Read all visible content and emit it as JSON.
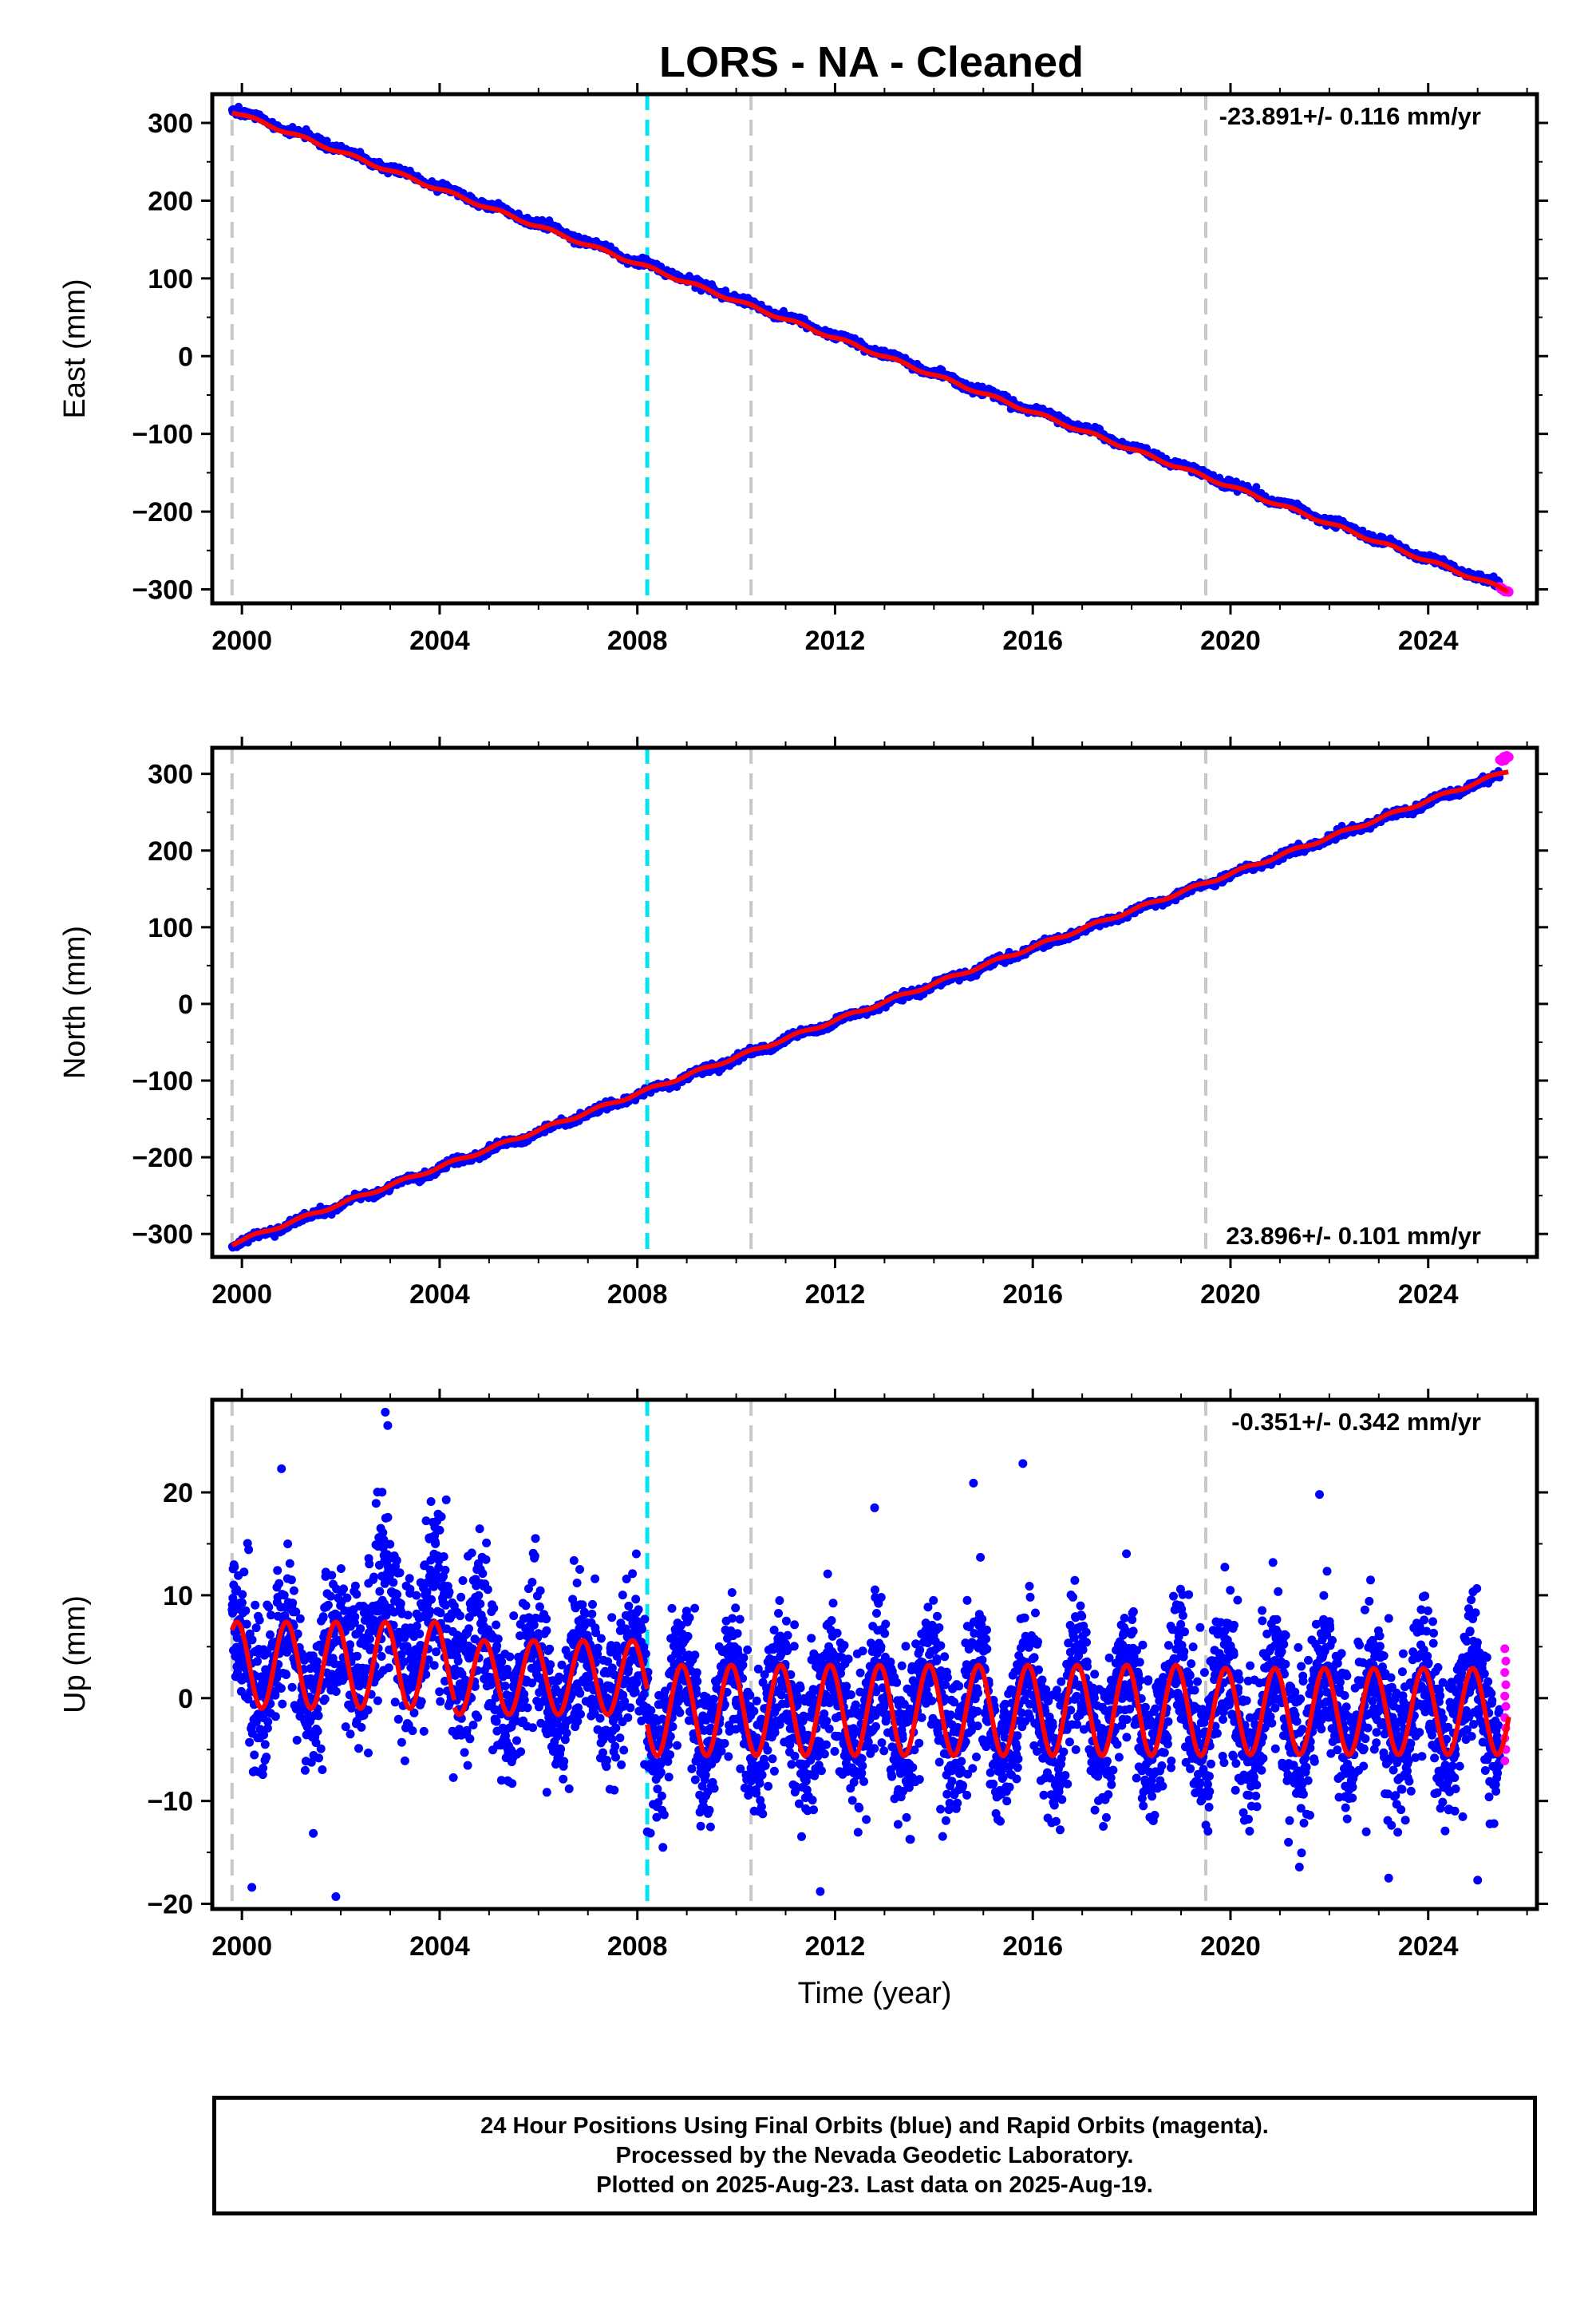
{
  "title": "LORS  - NA - Cleaned",
  "colors": {
    "final_orbits": "#0000ff",
    "rapid_orbits": "#ff00ff",
    "model_fit": "#ff0000",
    "equipment_change": "#c8c8c8",
    "event_marker": "#00e5ee"
  },
  "caption": {
    "line1": "24 Hour Positions Using Final Orbits (blue) and Rapid Orbits (magenta).",
    "line2": "Processed by the Nevada Geodetic Laboratory.",
    "line3": "Plotted on 2025-Aug-23. Last data on 2025-Aug-19."
  },
  "chart_data": [
    {
      "type": "scatter",
      "ylabel": "East (mm)",
      "xlabel": "",
      "rate_label": "-23.891+/- 0.116 mm/yr",
      "rate_position": "top-right",
      "xlim": [
        1999.4,
        2026.2
      ],
      "ylim": [
        -318,
        337
      ],
      "yticks": [
        -300,
        -200,
        -100,
        0,
        100,
        200,
        300
      ],
      "xticks": [
        2000,
        2004,
        2008,
        2012,
        2016,
        2020,
        2024
      ],
      "grid": false,
      "vertical_markers": {
        "gray": [
          1999.8,
          2010.3,
          2019.5
        ],
        "cyan": [
          2008.2
        ]
      },
      "series": [
        {
          "role": "final_orbits",
          "x_range": [
            1999.8,
            2025.45
          ],
          "start_value": 318,
          "rate": -23.891,
          "seasonal_amp": 2.5,
          "scatter": 2.5
        },
        {
          "role": "rapid_orbits",
          "x_range": [
            2025.45,
            2025.63
          ],
          "start_value": -298,
          "rate": -23.891,
          "scatter": 1.5
        },
        {
          "role": "model_fit",
          "x_range": [
            1999.8,
            2025.63
          ],
          "start_value": 315,
          "rate": -23.891,
          "seasonal_amp": 2
        }
      ]
    },
    {
      "type": "scatter",
      "ylabel": "North (mm)",
      "xlabel": "",
      "rate_label": "23.896+/- 0.101 mm/yr",
      "rate_position": "bottom-right",
      "xlim": [
        1999.4,
        2026.2
      ],
      "ylim": [
        -330,
        334
      ],
      "yticks": [
        -300,
        -200,
        -100,
        0,
        100,
        200,
        300
      ],
      "xticks": [
        2000,
        2004,
        2008,
        2012,
        2016,
        2020,
        2024
      ],
      "grid": false,
      "vertical_markers": {
        "gray": [
          1999.8,
          2010.3,
          2019.5
        ],
        "cyan": [
          2008.2
        ]
      },
      "series": [
        {
          "role": "final_orbits",
          "x_range": [
            1999.8,
            2025.45
          ],
          "start_value": -315,
          "rate": 23.896,
          "seasonal_amp": 2.5,
          "scatter": 2.5
        },
        {
          "role": "rapid_orbits",
          "x_range": [
            2025.45,
            2025.63
          ],
          "start_value": 317,
          "rate": 23.896,
          "scatter": 1.5
        },
        {
          "role": "model_fit",
          "x_range": [
            1999.8,
            2025.63
          ],
          "start_value": -313,
          "rate": 23.896,
          "seasonal_amp": 2
        }
      ]
    },
    {
      "type": "scatter",
      "ylabel": "Up (mm)",
      "xlabel": "Time (year)",
      "rate_label": "-0.351+/- 0.342 mm/yr",
      "rate_position": "top-right",
      "xlim": [
        1999.4,
        2026.2
      ],
      "ylim": [
        -20.5,
        29
      ],
      "yticks": [
        -20,
        -10,
        0,
        10,
        20
      ],
      "xticks": [
        2000,
        2004,
        2008,
        2012,
        2016,
        2020,
        2024
      ],
      "grid": false,
      "vertical_markers": {
        "gray": [
          1999.8,
          2010.3,
          2019.5
        ],
        "cyan": [
          2008.2
        ]
      },
      "fit_segments": [
        {
          "x_range": [
            1999.8,
            2004.3
          ],
          "offset": 3.2,
          "amp": 4.2,
          "peak_phase": 0.9
        },
        {
          "x_range": [
            2004.3,
            2008.2
          ],
          "offset": 2.0,
          "amp": 3.6,
          "peak_phase": 0.9
        },
        {
          "x_range": [
            2008.2,
            2019.5
          ],
          "offset": -1.2,
          "amp": 4.4,
          "peak_phase": 0.9
        },
        {
          "x_range": [
            2019.5,
            2025.63
          ],
          "offset": -1.3,
          "amp": 4.2,
          "peak_phase": 0.9
        }
      ],
      "scatter_std": 3.6,
      "noisy_period": {
        "x_range": [
          2002.2,
          2004.9
        ],
        "extra_offset": 3.5,
        "extra_std": 2.2
      },
      "outliers": [
        {
          "x": 2000.2,
          "y": -18.4
        },
        {
          "x": 2001.9,
          "y": -19.3
        },
        {
          "x": 2002.9,
          "y": 27.8
        },
        {
          "x": 2002.95,
          "y": 26.5
        },
        {
          "x": 2000.8,
          "y": 22.3
        },
        {
          "x": 2011.7,
          "y": -18.8
        },
        {
          "x": 2012.8,
          "y": 18.5
        },
        {
          "x": 2015.8,
          "y": 22.8
        },
        {
          "x": 2014.8,
          "y": 20.9
        },
        {
          "x": 2021.8,
          "y": 19.8
        },
        {
          "x": 2025.0,
          "y": -17.7
        },
        {
          "x": 2023.2,
          "y": -17.5
        },
        {
          "x": 2008.2,
          "y": -13.0
        }
      ],
      "rapid_values": [
        4.8,
        3.6,
        2.5,
        1.3,
        0.2,
        -0.8,
        -1.9,
        -2.9,
        -3.9,
        -5.0,
        -6.1
      ]
    }
  ]
}
